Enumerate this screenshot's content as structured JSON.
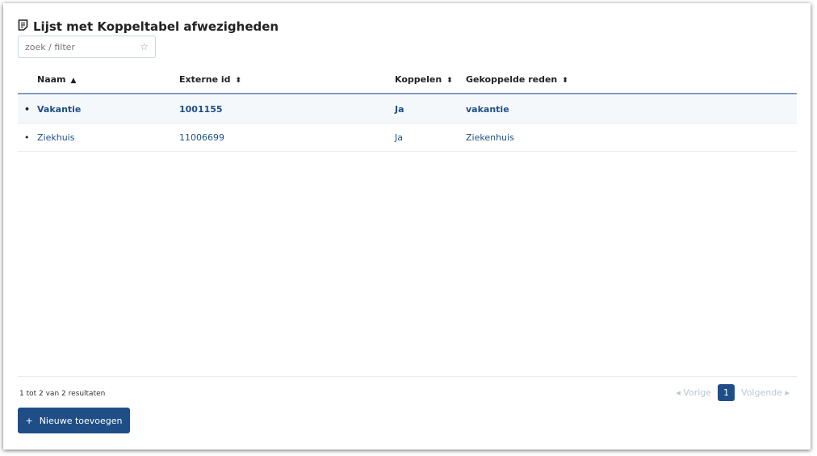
{
  "title": "Lijst met Koppeltabel afwezigheden",
  "search": {
    "placeholder": "zoek / filter"
  },
  "columns": [
    "Naam",
    "Externe id",
    "Koppelen",
    "Gekoppelde reden"
  ],
  "rows": [
    {
      "naam": "Vakantie",
      "id": "1001155",
      "koppelen": "Ja",
      "reden": "vakantie"
    },
    {
      "naam": "Ziekhuis",
      "id": "11006699",
      "koppelen": "Ja",
      "reden": "Ziekenhuis"
    }
  ],
  "footer": {
    "count": "1 tot 2 van 2 resultaten",
    "prev": "Vorige",
    "page": "1",
    "next": "Volgende"
  },
  "add_button": "Nieuwe toevoegen",
  "colors": {
    "accent": "#1f4e86"
  }
}
